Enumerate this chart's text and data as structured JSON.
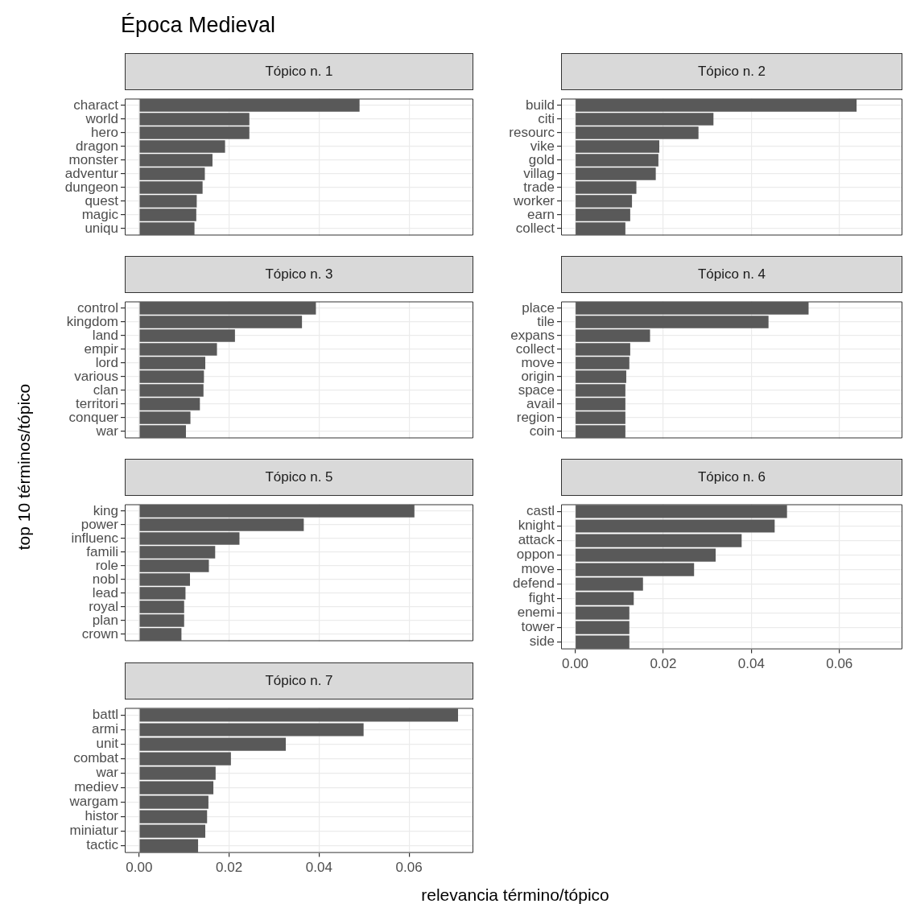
{
  "chart_data": [
    {
      "type": "bar",
      "orientation": "horizontal",
      "title": "Época Medieval",
      "subtitle": "Tópico n. 1",
      "categories": [
        "charact",
        "world",
        "hero",
        "dragon",
        "monster",
        "adventur",
        "dungeon",
        "quest",
        "magic",
        "uniqu"
      ],
      "values": [
        0.049,
        0.0245,
        0.0245,
        0.0191,
        0.0163,
        0.0146,
        0.0141,
        0.0128,
        0.0127,
        0.0123
      ],
      "color": "#595959",
      "xlim": [
        -0.0032,
        0.0743
      ],
      "xticks": [
        0,
        0.02,
        0.04,
        0.06
      ],
      "grid": true,
      "tick_labels": "y"
    },
    {
      "type": "bar",
      "orientation": "horizontal",
      "subtitle": "Tópico n. 2",
      "categories": [
        "build",
        "citi",
        "resourc",
        "vike",
        "gold",
        "villag",
        "trade",
        "worker",
        "earn",
        "collect"
      ],
      "values": [
        0.0639,
        0.0314,
        0.028,
        0.0191,
        0.0189,
        0.0183,
        0.0139,
        0.0129,
        0.0125,
        0.0114
      ],
      "color": "#595959",
      "xlim": [
        -0.0032,
        0.0743
      ],
      "xticks": [
        0,
        0.02,
        0.04,
        0.06
      ],
      "grid": true,
      "tick_labels": "y"
    },
    {
      "type": "bar",
      "orientation": "horizontal",
      "subtitle": "Tópico n. 3",
      "categories": [
        "control",
        "kingdom",
        "land",
        "empir",
        "lord",
        "various",
        "clan",
        "territori",
        "conquer",
        "war"
      ],
      "values": [
        0.0393,
        0.0362,
        0.0213,
        0.0173,
        0.0147,
        0.0144,
        0.0143,
        0.0135,
        0.0114,
        0.0104
      ],
      "color": "#595959",
      "xlim": [
        -0.0032,
        0.0743
      ],
      "xticks": [
        0,
        0.02,
        0.04,
        0.06
      ],
      "grid": true,
      "tick_labels": "y"
    },
    {
      "type": "bar",
      "orientation": "horizontal",
      "subtitle": "Tópico n. 4",
      "categories": [
        "place",
        "tile",
        "expans",
        "collect",
        "move",
        "origin",
        "space",
        "avail",
        "region",
        "coin"
      ],
      "values": [
        0.053,
        0.0439,
        0.017,
        0.0125,
        0.0123,
        0.0116,
        0.0114,
        0.0114,
        0.0114,
        0.0114
      ],
      "color": "#595959",
      "xlim": [
        -0.0032,
        0.0743
      ],
      "xticks": [
        0,
        0.02,
        0.04,
        0.06
      ],
      "grid": true,
      "tick_labels": "y"
    },
    {
      "type": "bar",
      "orientation": "horizontal",
      "subtitle": "Tópico n. 5",
      "ylabel": "top 10 términos/tópico",
      "categories": [
        "king",
        "power",
        "influenc",
        "famili",
        "role",
        "nobl",
        "lead",
        "royal",
        "plan",
        "crown"
      ],
      "values": [
        0.0612,
        0.0366,
        0.0223,
        0.0169,
        0.0155,
        0.0113,
        0.0103,
        0.01,
        0.01,
        0.0094
      ],
      "color": "#595959",
      "xlim": [
        -0.0032,
        0.0743
      ],
      "xticks": [
        0,
        0.02,
        0.04,
        0.06
      ],
      "grid": true,
      "tick_labels": "y"
    },
    {
      "type": "bar",
      "orientation": "horizontal",
      "subtitle": "Tópico n. 6",
      "categories": [
        "castl",
        "knight",
        "attack",
        "oppon",
        "move",
        "defend",
        "fight",
        "enemi",
        "tower",
        "side"
      ],
      "values": [
        0.0481,
        0.0453,
        0.0378,
        0.0319,
        0.027,
        0.0154,
        0.0133,
        0.0123,
        0.0123,
        0.0123
      ],
      "color": "#595959",
      "xlim": [
        -0.0032,
        0.0743
      ],
      "xticks": [
        {
          "value": 0,
          "label": "0.00"
        },
        {
          "value": 0.02,
          "label": "0.02"
        },
        {
          "value": 0.04,
          "label": "0.04"
        },
        {
          "value": 0.06,
          "label": "0.06"
        }
      ],
      "grid": true
    },
    {
      "type": "bar",
      "orientation": "horizontal",
      "subtitle": "Tópico n. 7",
      "xlabel": "relevancia término/tópico",
      "categories": [
        "battl",
        "armi",
        "unit",
        "combat",
        "war",
        "mediev",
        "wargam",
        "histor",
        "miniatur",
        "tactic"
      ],
      "values": [
        0.0709,
        0.0499,
        0.0326,
        0.0204,
        0.017,
        0.0165,
        0.0154,
        0.0151,
        0.0147,
        0.0131
      ],
      "color": "#595959",
      "xlim": [
        -0.0032,
        0.0743
      ],
      "xticks": [
        {
          "value": 0,
          "label": "0.00"
        },
        {
          "value": 0.02,
          "label": "0.02"
        },
        {
          "value": 0.04,
          "label": "0.04"
        },
        {
          "value": 0.06,
          "label": "0.06"
        }
      ],
      "grid": true
    }
  ]
}
